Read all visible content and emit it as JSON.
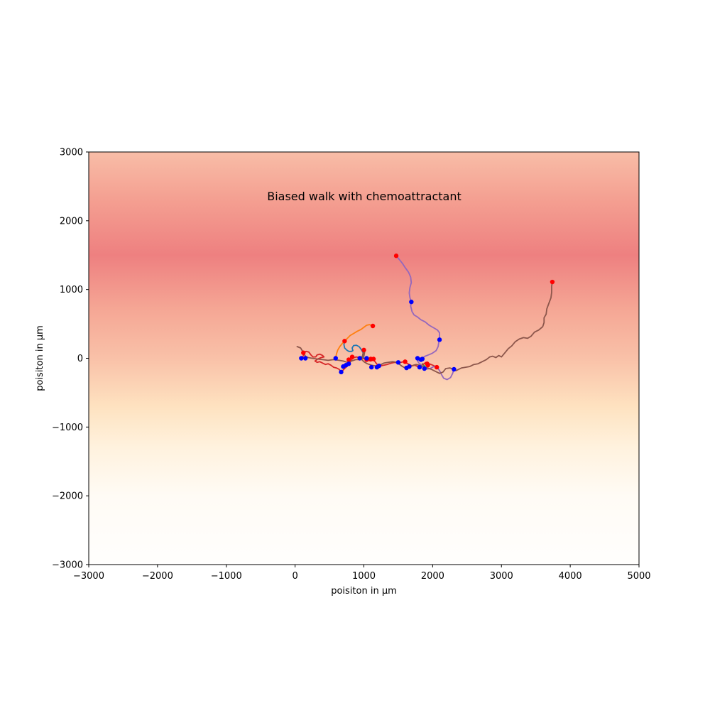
{
  "chart_data": {
    "type": "line",
    "title": "Biased walk with chemoattractant",
    "xlabel": "poisiton in µm",
    "ylabel": "poisiton in µm",
    "xlim": [
      -3000,
      5000
    ],
    "ylim": [
      -3000,
      3000
    ],
    "xticks": [
      -3000,
      -2000,
      -1000,
      0,
      1000,
      2000,
      3000,
      4000,
      5000
    ],
    "yticks": [
      -3000,
      -2000,
      -1000,
      0,
      1000,
      2000,
      3000
    ],
    "xtick_labels": [
      "−3000",
      "−2000",
      "−1000",
      "0",
      "1000",
      "2000",
      "3000",
      "4000",
      "5000"
    ],
    "ytick_labels": [
      "−3000",
      "−2000",
      "−1000",
      "0",
      "1000",
      "2000",
      "3000"
    ],
    "grid": false,
    "background_gradient": {
      "peak_y": 1500,
      "stops": [
        {
          "y": 3000,
          "color": "#f8bda7"
        },
        {
          "y": 2300,
          "color": "#f49f91"
        },
        {
          "y": 1500,
          "color": "#ee8080"
        },
        {
          "y": 700,
          "color": "#f5a795"
        },
        {
          "y": 0,
          "color": "#f9c1a8"
        },
        {
          "y": -700,
          "color": "#fee2c0"
        },
        {
          "y": -1300,
          "color": "#fff2de"
        },
        {
          "y": -2000,
          "color": "#fffbf5"
        },
        {
          "y": -3000,
          "color": "#fffefd"
        }
      ]
    },
    "marker_colors": {
      "end": "#ff0000",
      "start": "#0000ff"
    },
    "series": [
      {
        "color": "#1f77b4",
        "points": [
          [
            1000,
            0
          ],
          [
            980,
            30
          ],
          [
            990,
            80
          ],
          [
            960,
            130
          ],
          [
            930,
            170
          ],
          [
            890,
            190
          ],
          [
            850,
            185
          ],
          [
            830,
            150
          ],
          [
            840,
            110
          ],
          [
            820,
            100
          ],
          [
            780,
            100
          ],
          [
            750,
            120
          ],
          [
            720,
            150
          ],
          [
            710,
            200
          ],
          [
            720,
            250
          ]
        ]
      },
      {
        "color": "#ff7f0e",
        "points": [
          [
            590,
            0
          ],
          [
            600,
            60
          ],
          [
            620,
            120
          ],
          [
            650,
            170
          ],
          [
            690,
            220
          ],
          [
            720,
            250
          ],
          [
            760,
            290
          ],
          [
            800,
            330
          ],
          [
            850,
            360
          ],
          [
            900,
            390
          ],
          [
            960,
            420
          ],
          [
            1000,
            450
          ],
          [
            1040,
            480
          ],
          [
            1080,
            490
          ],
          [
            1130,
            470
          ]
        ]
      },
      {
        "color": "#2ca02c",
        "points": [
          [
            1850,
            -80
          ],
          [
            1870,
            -100
          ],
          [
            1890,
            -120
          ],
          [
            1880,
            -150
          ]
        ]
      },
      {
        "color": "#d62728",
        "points": [
          [
            100,
            0
          ],
          [
            120,
            40
          ],
          [
            130,
            80
          ],
          [
            160,
            100
          ],
          [
            200,
            90
          ],
          [
            230,
            50
          ],
          [
            260,
            20
          ],
          [
            300,
            20
          ],
          [
            320,
            50
          ],
          [
            360,
            60
          ],
          [
            400,
            40
          ],
          [
            420,
            20
          ],
          [
            380,
            10
          ],
          [
            330,
            -10
          ],
          [
            290,
            -40
          ],
          [
            320,
            -60
          ],
          [
            360,
            -50
          ],
          [
            400,
            -70
          ],
          [
            440,
            -90
          ],
          [
            480,
            -80
          ],
          [
            520,
            -100
          ],
          [
            560,
            -130
          ],
          [
            600,
            -140
          ],
          [
            640,
            -160
          ],
          [
            670,
            -200
          ],
          [
            700,
            -170
          ],
          [
            730,
            -140
          ],
          [
            760,
            -110
          ],
          [
            790,
            -80
          ],
          [
            810,
            -40
          ],
          [
            830,
            -10
          ],
          [
            860,
            10
          ],
          [
            890,
            20
          ],
          [
            930,
            10
          ],
          [
            980,
            0
          ],
          [
            1020,
            -10
          ],
          [
            1060,
            -30
          ],
          [
            1100,
            -40
          ],
          [
            1140,
            -20
          ],
          [
            1170,
            -60
          ],
          [
            1200,
            -100
          ],
          [
            1240,
            -110
          ],
          [
            1290,
            -100
          ],
          [
            1340,
            -90
          ],
          [
            1400,
            -70
          ],
          [
            1450,
            -60
          ],
          [
            1500,
            -70
          ],
          [
            1540,
            -60
          ],
          [
            1580,
            -50
          ],
          [
            1620,
            -70
          ],
          [
            1660,
            -90
          ],
          [
            1700,
            -110
          ],
          [
            1740,
            -100
          ],
          [
            1780,
            -120
          ],
          [
            1820,
            -110
          ],
          [
            1860,
            -90
          ],
          [
            1900,
            -60
          ],
          [
            1950,
            -80
          ],
          [
            2000,
            -100
          ],
          [
            2060,
            -130
          ]
        ]
      },
      {
        "color": "#9467bd",
        "points": [
          [
            1470,
            1490
          ],
          [
            1520,
            1430
          ],
          [
            1560,
            1380
          ],
          [
            1600,
            1320
          ],
          [
            1650,
            1250
          ],
          [
            1680,
            1180
          ],
          [
            1690,
            1100
          ],
          [
            1670,
            1030
          ],
          [
            1660,
            950
          ],
          [
            1670,
            880
          ],
          [
            1690,
            820
          ],
          [
            1680,
            760
          ],
          [
            1700,
            680
          ],
          [
            1730,
            630
          ],
          [
            1780,
            600
          ],
          [
            1830,
            560
          ],
          [
            1890,
            530
          ],
          [
            1950,
            480
          ],
          [
            2020,
            440
          ],
          [
            2070,
            410
          ],
          [
            2100,
            370
          ],
          [
            2100,
            300
          ],
          [
            2090,
            240
          ],
          [
            2080,
            170
          ],
          [
            2050,
            110
          ],
          [
            1990,
            70
          ],
          [
            1940,
            50
          ],
          [
            1890,
            30
          ],
          [
            1850,
            0
          ],
          [
            1800,
            -20
          ],
          [
            1780,
            -40
          ],
          [
            1800,
            -70
          ],
          [
            1840,
            -100
          ],
          [
            1870,
            -130
          ],
          [
            1900,
            -160
          ],
          [
            1960,
            -150
          ],
          [
            2020,
            -120
          ],
          [
            2070,
            -140
          ],
          [
            2100,
            -180
          ],
          [
            2130,
            -240
          ],
          [
            2160,
            -290
          ],
          [
            2210,
            -310
          ],
          [
            2260,
            -280
          ],
          [
            2290,
            -220
          ],
          [
            2310,
            -160
          ]
        ]
      },
      {
        "color": "#8c564b",
        "points": [
          [
            30,
            170
          ],
          [
            80,
            150
          ],
          [
            110,
            100
          ],
          [
            120,
            80
          ],
          [
            150,
            30
          ],
          [
            190,
            10
          ],
          [
            250,
            0
          ],
          [
            320,
            -10
          ],
          [
            400,
            -20
          ],
          [
            480,
            -30
          ],
          [
            560,
            -20
          ],
          [
            640,
            -30
          ],
          [
            700,
            -40
          ],
          [
            760,
            -60
          ],
          [
            820,
            -40
          ],
          [
            880,
            -20
          ],
          [
            920,
            -20
          ],
          [
            960,
            20
          ],
          [
            1000,
            30
          ],
          [
            1010,
            90
          ],
          [
            1000,
            130
          ],
          [
            990,
            80
          ],
          [
            980,
            30
          ],
          [
            970,
            -20
          ],
          [
            1000,
            -50
          ],
          [
            1050,
            -80
          ],
          [
            1110,
            -100
          ],
          [
            1170,
            -110
          ],
          [
            1230,
            -100
          ],
          [
            1290,
            -70
          ],
          [
            1350,
            -60
          ],
          [
            1420,
            -50
          ],
          [
            1480,
            -60
          ],
          [
            1520,
            -90
          ],
          [
            1560,
            -120
          ],
          [
            1600,
            -140
          ],
          [
            1640,
            -130
          ],
          [
            1680,
            -120
          ],
          [
            1720,
            -100
          ],
          [
            1760,
            -90
          ],
          [
            1810,
            -100
          ],
          [
            1860,
            -120
          ],
          [
            1920,
            -140
          ],
          [
            1980,
            -160
          ],
          [
            2040,
            -190
          ],
          [
            2100,
            -220
          ],
          [
            2150,
            -200
          ],
          [
            2190,
            -150
          ],
          [
            2250,
            -140
          ],
          [
            2300,
            -160
          ],
          [
            2340,
            -180
          ],
          [
            2380,
            -160
          ],
          [
            2420,
            -140
          ],
          [
            2480,
            -130
          ],
          [
            2540,
            -120
          ],
          [
            2600,
            -90
          ],
          [
            2660,
            -80
          ],
          [
            2720,
            -50
          ],
          [
            2780,
            -20
          ],
          [
            2830,
            20
          ],
          [
            2870,
            30
          ],
          [
            2920,
            10
          ],
          [
            2960,
            40
          ],
          [
            3000,
            20
          ],
          [
            3050,
            80
          ],
          [
            3100,
            140
          ],
          [
            3150,
            180
          ],
          [
            3200,
            240
          ],
          [
            3260,
            280
          ],
          [
            3320,
            300
          ],
          [
            3380,
            290
          ],
          [
            3430,
            320
          ],
          [
            3480,
            380
          ],
          [
            3540,
            410
          ],
          [
            3600,
            460
          ],
          [
            3620,
            520
          ],
          [
            3620,
            590
          ],
          [
            3650,
            640
          ],
          [
            3660,
            720
          ],
          [
            3690,
            800
          ],
          [
            3720,
            880
          ],
          [
            3730,
            960
          ],
          [
            3730,
            1050
          ],
          [
            3740,
            1110
          ]
        ]
      }
    ],
    "end_markers": [
      [
        1470,
        1490
      ],
      [
        3740,
        1110
      ],
      [
        1130,
        470
      ],
      [
        720,
        250
      ],
      [
        120,
        80
      ],
      [
        1000,
        120
      ],
      [
        830,
        20
      ],
      [
        780,
        -20
      ],
      [
        1100,
        -10
      ],
      [
        1140,
        -10
      ],
      [
        1040,
        -20
      ],
      [
        1600,
        -50
      ],
      [
        1920,
        -80
      ],
      [
        1930,
        -100
      ],
      [
        2060,
        -130
      ]
    ],
    "start_markers": [
      [
        1690,
        820
      ],
      [
        2100,
        270
      ],
      [
        90,
        0
      ],
      [
        150,
        0
      ],
      [
        590,
        0
      ],
      [
        940,
        0
      ],
      [
        1040,
        0
      ],
      [
        780,
        -80
      ],
      [
        740,
        -100
      ],
      [
        700,
        -120
      ],
      [
        670,
        -200
      ],
      [
        1110,
        -130
      ],
      [
        1190,
        -130
      ],
      [
        1220,
        -110
      ],
      [
        1500,
        -60
      ],
      [
        1620,
        -140
      ],
      [
        1660,
        -120
      ],
      [
        1780,
        0
      ],
      [
        1830,
        -20
      ],
      [
        1850,
        -10
      ],
      [
        1810,
        -130
      ],
      [
        2310,
        -160
      ],
      [
        1880,
        -150
      ]
    ]
  }
}
